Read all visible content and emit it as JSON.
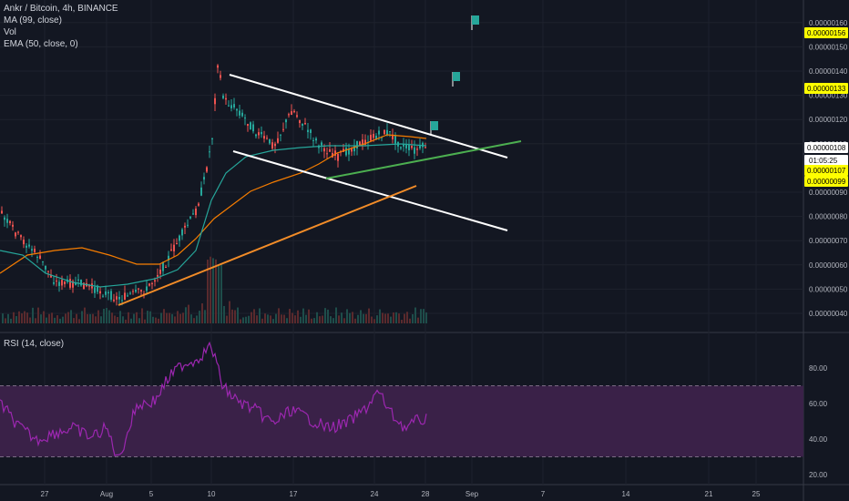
{
  "legend": {
    "symbol": "Ankr / Bitcoin, 4h, BINANCE",
    "ma": "MA (99, close)",
    "vol": "Vol",
    "ema": "EMA (50, close, 0)",
    "rsi": "RSI (14, close)"
  },
  "chart_data": {
    "type": "candlestick",
    "price_axis": {
      "range": [
        3.5e-07,
        1.65e-06
      ],
      "ticks": [
        "0.00000160",
        "0.00000150",
        "0.00000140",
        "0.00000130",
        "0.00000120",
        "0.00000110",
        "0.00000090",
        "0.00000080",
        "0.00000070",
        "0.00000060",
        "0.00000050",
        "0.00000040"
      ]
    },
    "price_labels": [
      {
        "value": 1.56e-06,
        "text": "0.00000156",
        "color": "#ffff00"
      },
      {
        "value": 1.33e-06,
        "text": "0.00000133",
        "color": "#ffff00"
      },
      {
        "value": 1.08e-06,
        "text": "0.00000108",
        "color": "#ffffff"
      },
      {
        "value": 1.07e-06,
        "text": "0.00000107",
        "color": "#ffff00"
      },
      {
        "value": 9.9e-07,
        "text": "0.00000099",
        "color": "#ffff00"
      }
    ],
    "countdown": "01:05:25",
    "rsi_axis": {
      "range": [
        15,
        95
      ],
      "ticks": [
        "80.00",
        "60.00",
        "40.00",
        "20.00"
      ],
      "band": [
        30,
        70
      ]
    },
    "x_axis": {
      "ticks": [
        "27",
        "Aug",
        "5",
        "10",
        "17",
        "24",
        "28",
        "Sep",
        "7",
        "14",
        "21",
        "25"
      ]
    },
    "horizontal_levels": [
      1.56e-06,
      1.33e-06,
      1.07e-06,
      9.9e-07
    ],
    "colors": {
      "up": "#26a69a",
      "down": "#ef5350",
      "ma": "#26a69a",
      "ema": "#f57c00",
      "level": "#ffff00",
      "channel": "#ffffff",
      "trend_support": "#f28c28",
      "trend_green": "#4caf50",
      "rsi": "#9c27b0",
      "rsi_band": "#3a2148"
    }
  }
}
